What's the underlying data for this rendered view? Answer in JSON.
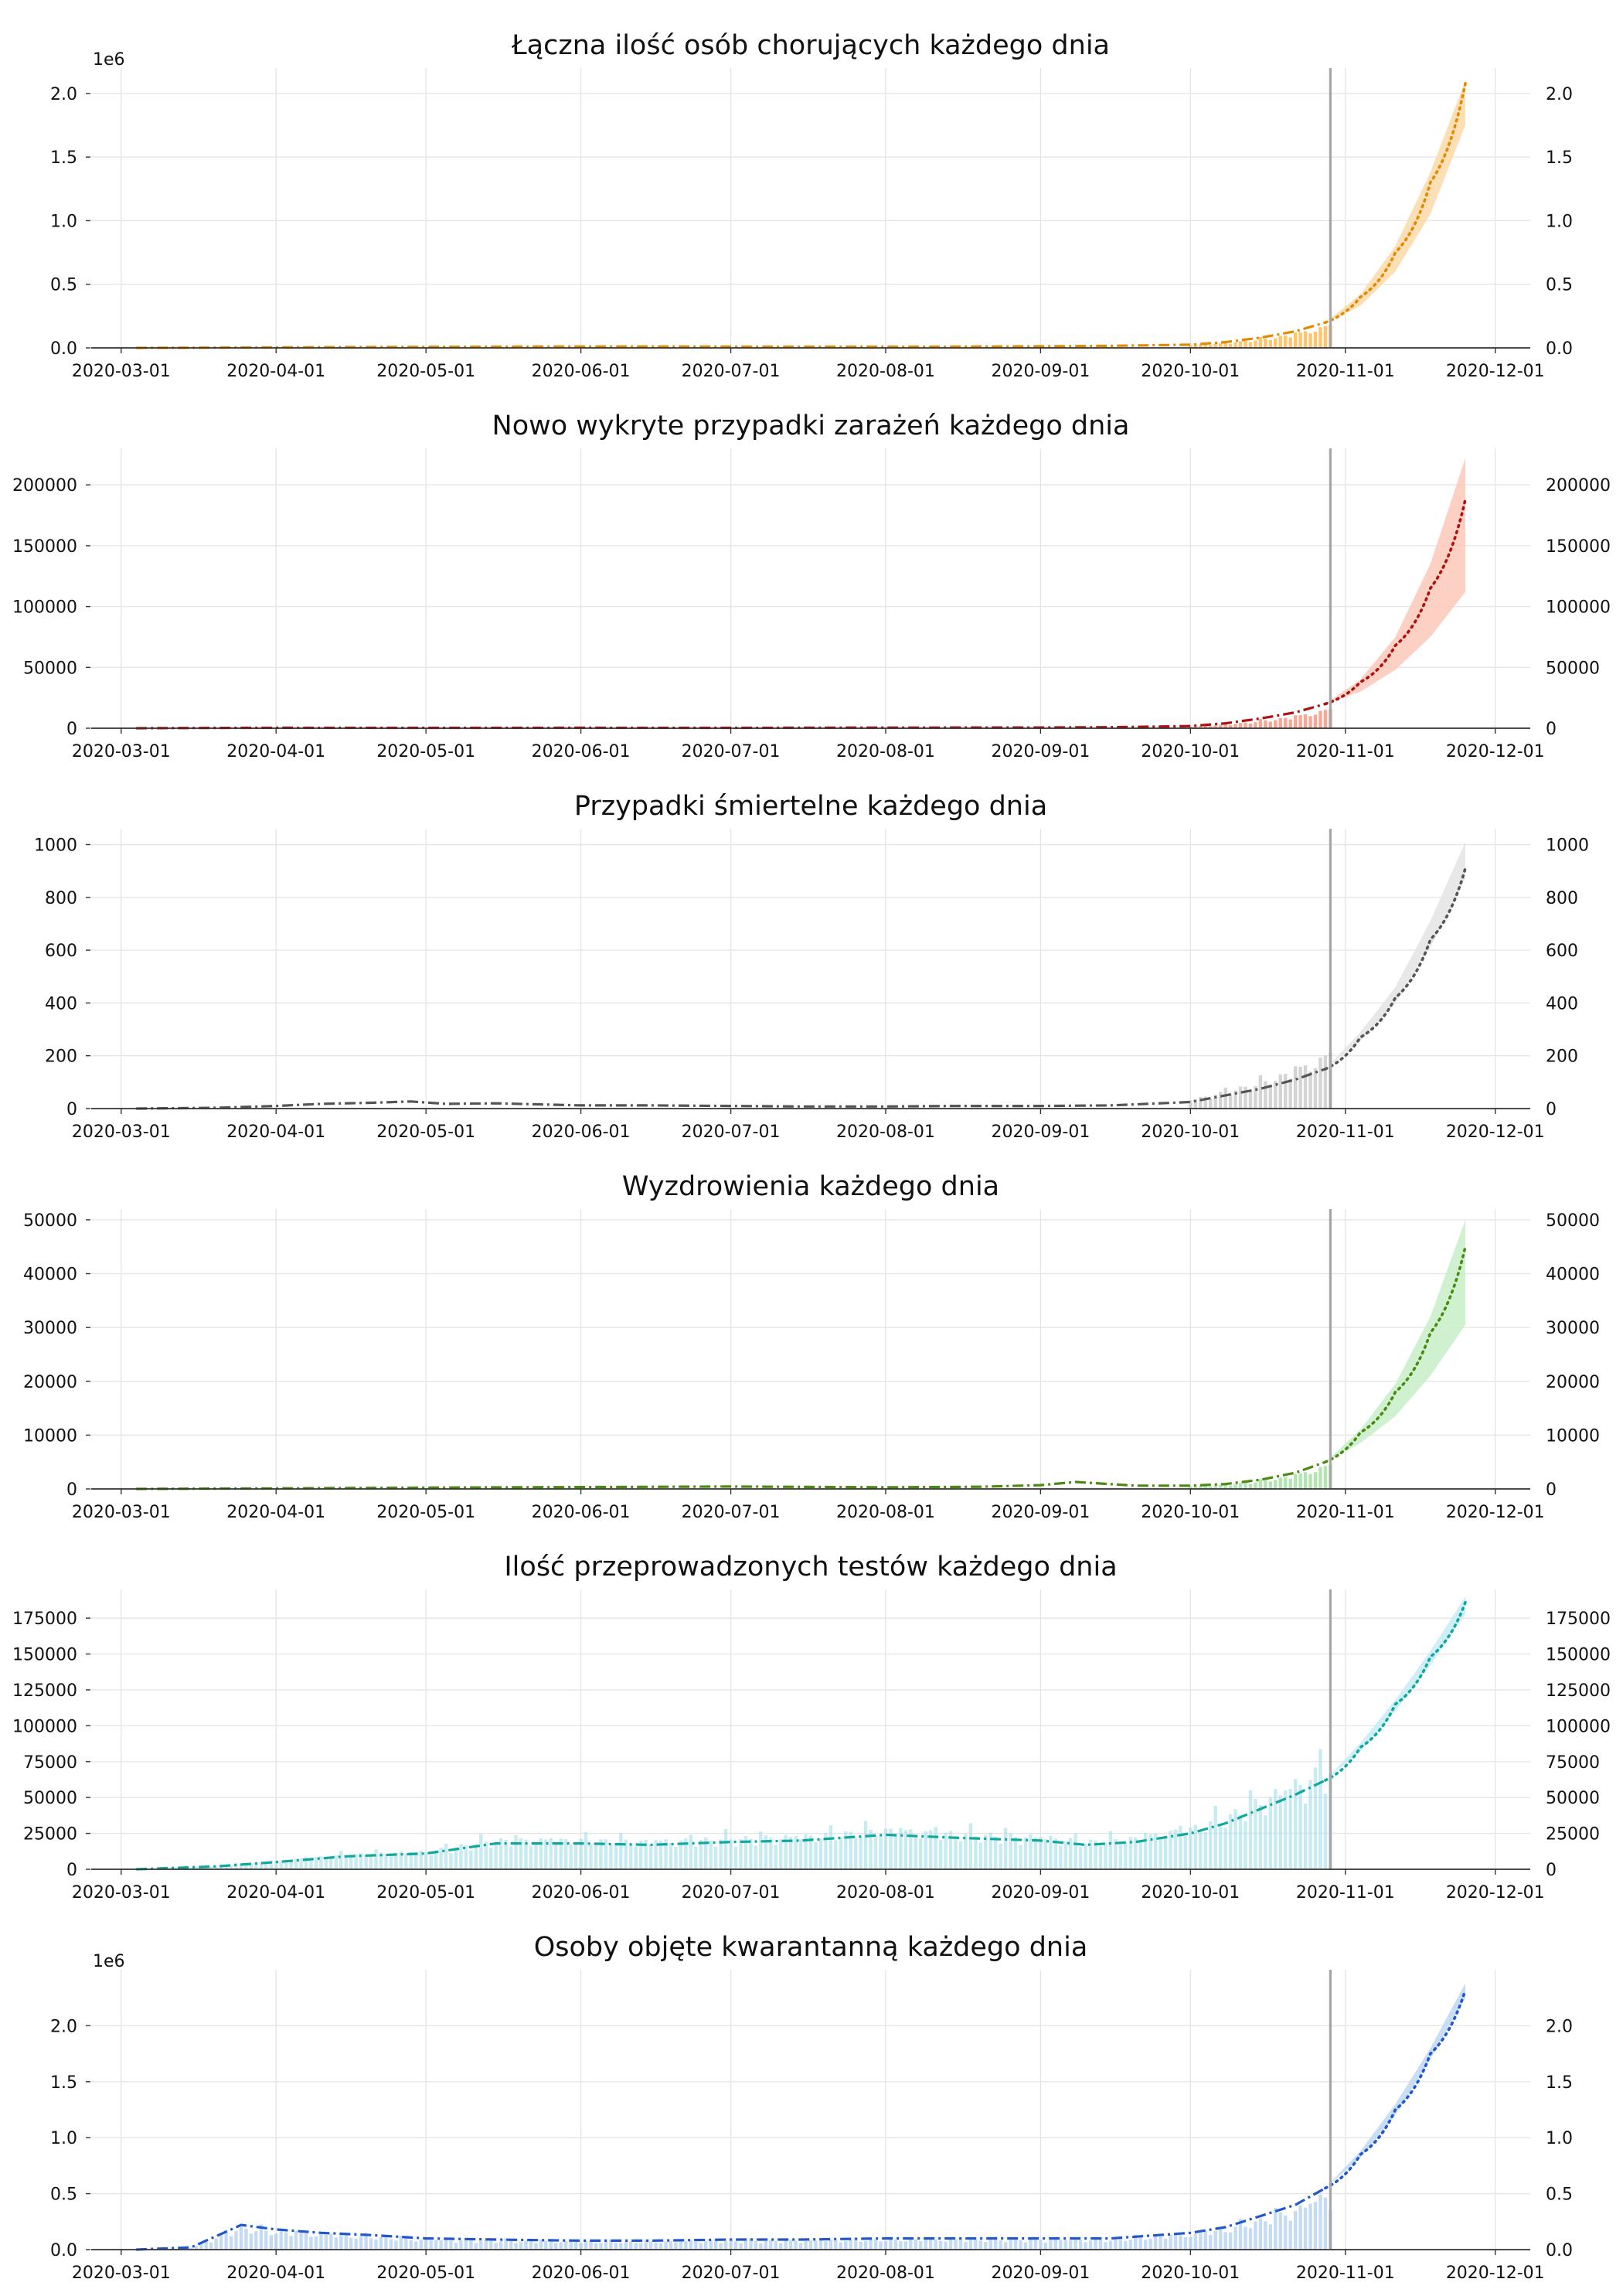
{
  "chart_data": [
    {
      "type": "bar",
      "title": "Łączna ilość osób chorujących każdego dnia",
      "color": "#ff9f0e",
      "band_color": "#fcd9a8",
      "line_color": "#e38a00",
      "multiplier_label": "1e6",
      "yticks": [
        0.0,
        0.5,
        1.0,
        1.5,
        2.0
      ],
      "ytick_labels": [
        "0.0",
        "0.5",
        "1.0",
        "1.5",
        "2.0"
      ],
      "ylim": [
        0,
        2.2
      ],
      "x_dates": [
        "2020-03-04",
        "2020-03-15",
        "2020-04-01",
        "2020-04-15",
        "2020-05-01",
        "2020-05-15",
        "2020-06-01",
        "2020-06-15",
        "2020-07-01",
        "2020-07-15",
        "2020-08-01",
        "2020-08-15",
        "2020-09-01",
        "2020-09-15",
        "2020-10-01",
        "2020-10-08",
        "2020-10-15",
        "2020-10-22",
        "2020-10-28"
      ],
      "y_values": [
        0.0,
        0.001,
        0.004,
        0.006,
        0.008,
        0.009,
        0.011,
        0.011,
        0.01,
        0.009,
        0.009,
        0.01,
        0.012,
        0.016,
        0.025,
        0.045,
        0.08,
        0.13,
        0.2
      ],
      "bars_from": "2020-10-01",
      "bars_scale": 0.8,
      "forecast_dates": [
        "2020-10-28",
        "2020-11-04",
        "2020-11-11",
        "2020-11-18",
        "2020-11-25"
      ],
      "forecast_values": [
        0.2,
        0.4,
        0.75,
        1.3,
        2.08
      ],
      "band_low": [
        0.2,
        0.33,
        0.6,
        1.05,
        1.75
      ],
      "band_high": [
        0.2,
        0.42,
        0.8,
        1.38,
        2.1
      ]
    },
    {
      "type": "bar",
      "title": "Nowo wykryte przypadki zarażeń każdego dnia",
      "color": "#f36c4e",
      "band_color": "#fbc9b9",
      "line_color": "#b01010",
      "multiplier_label": "",
      "yticks": [
        0,
        50000,
        100000,
        150000,
        200000
      ],
      "ytick_labels": [
        "0",
        "50000",
        "100000",
        "150000",
        "200000"
      ],
      "ylim": [
        0,
        230000
      ],
      "x_dates": [
        "2020-03-04",
        "2020-03-15",
        "2020-04-01",
        "2020-05-01",
        "2020-06-01",
        "2020-07-01",
        "2020-08-01",
        "2020-09-01",
        "2020-09-15",
        "2020-10-01",
        "2020-10-08",
        "2020-10-15",
        "2020-10-22",
        "2020-10-28"
      ],
      "y_values": [
        0,
        200,
        350,
        300,
        350,
        300,
        500,
        600,
        800,
        1800,
        4000,
        8000,
        13000,
        20000
      ],
      "bars_from": "2020-10-01",
      "bars_scale": 0.7,
      "forecast_dates": [
        "2020-10-28",
        "2020-11-04",
        "2020-11-11",
        "2020-11-18",
        "2020-11-25"
      ],
      "forecast_values": [
        20000,
        38000,
        68000,
        115000,
        188000
      ],
      "band_low": [
        20000,
        30000,
        48000,
        75000,
        112000
      ],
      "band_high": [
        20000,
        40000,
        75000,
        135000,
        222000
      ]
    },
    {
      "type": "bar",
      "title": "Przypadki śmiertelne każdego dnia",
      "color": "#b7b7b7",
      "band_color": "#e4e4e4",
      "line_color": "#555555",
      "multiplier_label": "",
      "yticks": [
        0,
        200,
        400,
        600,
        800,
        1000
      ],
      "ytick_labels": [
        "0",
        "200",
        "400",
        "600",
        "800",
        "1000"
      ],
      "ylim": [
        0,
        1060
      ],
      "x_dates": [
        "2020-03-04",
        "2020-03-20",
        "2020-04-01",
        "2020-04-10",
        "2020-04-20",
        "2020-04-28",
        "2020-05-05",
        "2020-05-15",
        "2020-06-01",
        "2020-06-15",
        "2020-07-01",
        "2020-07-15",
        "2020-08-01",
        "2020-08-15",
        "2020-09-01",
        "2020-09-15",
        "2020-10-01",
        "2020-10-08",
        "2020-10-15",
        "2020-10-22",
        "2020-10-28"
      ],
      "y_values": [
        0,
        3,
        10,
        18,
        22,
        27,
        18,
        20,
        12,
        12,
        10,
        8,
        8,
        10,
        10,
        12,
        25,
        50,
        75,
        110,
        150
      ],
      "bars_from": "2020-10-01",
      "bars_scale": 1.25,
      "forecast_dates": [
        "2020-10-28",
        "2020-11-04",
        "2020-11-11",
        "2020-11-18",
        "2020-11-25"
      ],
      "forecast_values": [
        150,
        270,
        420,
        640,
        910
      ],
      "band_low": [
        150,
        255,
        400,
        610,
        870
      ],
      "band_high": [
        150,
        290,
        460,
        710,
        1010
      ]
    },
    {
      "type": "bar",
      "title": "Wyzdrowienia każdego dnia",
      "color": "#7fd37f",
      "band_color": "#c8eec8",
      "line_color": "#4a8a10",
      "multiplier_label": "",
      "yticks": [
        0,
        10000,
        20000,
        30000,
        40000,
        50000
      ],
      "ytick_labels": [
        "0",
        "10000",
        "20000",
        "30000",
        "40000",
        "50000"
      ],
      "ylim": [
        0,
        52000
      ],
      "x_dates": [
        "2020-03-04",
        "2020-04-01",
        "2020-05-01",
        "2020-06-01",
        "2020-07-01",
        "2020-08-01",
        "2020-08-20",
        "2020-09-01",
        "2020-09-08",
        "2020-09-20",
        "2020-10-01",
        "2020-10-08",
        "2020-10-15",
        "2020-10-22",
        "2020-10-28"
      ],
      "y_values": [
        0,
        100,
        250,
        350,
        450,
        300,
        400,
        700,
        1300,
        600,
        600,
        900,
        1700,
        3000,
        5000
      ],
      "bars_from": "2020-10-01",
      "bars_scale": 0.8,
      "forecast_dates": [
        "2020-10-28",
        "2020-11-04",
        "2020-11-11",
        "2020-11-18",
        "2020-11-25"
      ],
      "forecast_values": [
        5000,
        10500,
        18000,
        29000,
        45000
      ],
      "band_low": [
        5000,
        8500,
        13500,
        21000,
        30500
      ],
      "band_high": [
        5000,
        11000,
        19500,
        32000,
        50000
      ]
    },
    {
      "type": "bar",
      "title": "Ilość przeprowadzonych testów każdego dnia",
      "color": "#a4dce8",
      "band_color": "#c7ebf3",
      "line_color": "#10a89c",
      "multiplier_label": "",
      "yticks": [
        0,
        25000,
        50000,
        75000,
        100000,
        125000,
        150000,
        175000
      ],
      "ytick_labels": [
        "0",
        "25000",
        "50000",
        "75000",
        "100000",
        "125000",
        "150000",
        "175000"
      ],
      "ylim": [
        0,
        195000
      ],
      "x_dates": [
        "2020-03-04",
        "2020-03-20",
        "2020-04-01",
        "2020-04-15",
        "2020-05-01",
        "2020-05-15",
        "2020-06-01",
        "2020-06-15",
        "2020-07-01",
        "2020-07-15",
        "2020-08-01",
        "2020-08-15",
        "2020-09-01",
        "2020-09-10",
        "2020-09-20",
        "2020-10-01",
        "2020-10-08",
        "2020-10-15",
        "2020-10-22",
        "2020-10-28"
      ],
      "y_values": [
        0,
        2000,
        5000,
        9000,
        11000,
        18000,
        18000,
        17000,
        19000,
        20000,
        24000,
        22000,
        20000,
        17000,
        19000,
        25000,
        32000,
        42000,
        52000,
        62000
      ],
      "bars_from": "2020-03-10",
      "bars_scale": 1.1,
      "forecast_dates": [
        "2020-10-28",
        "2020-11-04",
        "2020-11-11",
        "2020-11-18",
        "2020-11-25"
      ],
      "forecast_values": [
        62000,
        85000,
        115000,
        148000,
        186000
      ],
      "band_low": [
        62000,
        82000,
        110000,
        142000,
        178000
      ],
      "band_high": [
        62000,
        88000,
        118000,
        152000,
        190000
      ]
    },
    {
      "type": "bar",
      "title": "Osoby objęte kwarantanną każdego dnia",
      "color": "#9cc3ea",
      "band_color": "#bfd8f4",
      "line_color": "#2256cc",
      "multiplier_label": "1e6",
      "yticks": [
        0.0,
        0.5,
        1.0,
        1.5,
        2.0
      ],
      "ytick_labels": [
        "0.0",
        "0.5",
        "1.0",
        "1.5",
        "2.0"
      ],
      "ylim": [
        0,
        2.5
      ],
      "x_dates": [
        "2020-03-04",
        "2020-03-15",
        "2020-03-25",
        "2020-04-01",
        "2020-04-10",
        "2020-04-20",
        "2020-05-01",
        "2020-05-15",
        "2020-06-01",
        "2020-06-15",
        "2020-07-01",
        "2020-07-15",
        "2020-08-01",
        "2020-08-15",
        "2020-09-01",
        "2020-09-15",
        "2020-10-01",
        "2020-10-08",
        "2020-10-15",
        "2020-10-22",
        "2020-10-28"
      ],
      "y_values": [
        0.0,
        0.02,
        0.22,
        0.18,
        0.15,
        0.13,
        0.1,
        0.09,
        0.08,
        0.08,
        0.09,
        0.09,
        0.1,
        0.1,
        0.1,
        0.1,
        0.15,
        0.2,
        0.3,
        0.4,
        0.55
      ],
      "bars_from": "2020-03-15",
      "bars_scale": 0.85,
      "forecast_dates": [
        "2020-10-28",
        "2020-11-04",
        "2020-11-11",
        "2020-11-18",
        "2020-11-25"
      ],
      "forecast_values": [
        0.55,
        0.85,
        1.25,
        1.75,
        2.32
      ],
      "band_low": [
        0.55,
        0.82,
        1.2,
        1.7,
        2.25
      ],
      "band_high": [
        0.55,
        0.88,
        1.3,
        1.8,
        2.38
      ]
    }
  ],
  "x_axis": {
    "tick_dates": [
      "2020-03-01",
      "2020-04-01",
      "2020-05-01",
      "2020-06-01",
      "2020-07-01",
      "2020-08-01",
      "2020-09-01",
      "2020-10-01",
      "2020-11-01",
      "2020-12-01"
    ],
    "tick_labels": [
      "2020-03-01",
      "2020-04-01",
      "2020-05-01",
      "2020-06-01",
      "2020-07-01",
      "2020-08-01",
      "2020-09-01",
      "2020-10-01",
      "2020-11-01",
      "2020-12-01"
    ],
    "xlim": [
      "2020-02-24",
      "2020-12-08"
    ],
    "present_marker_date": "2020-10-29"
  }
}
